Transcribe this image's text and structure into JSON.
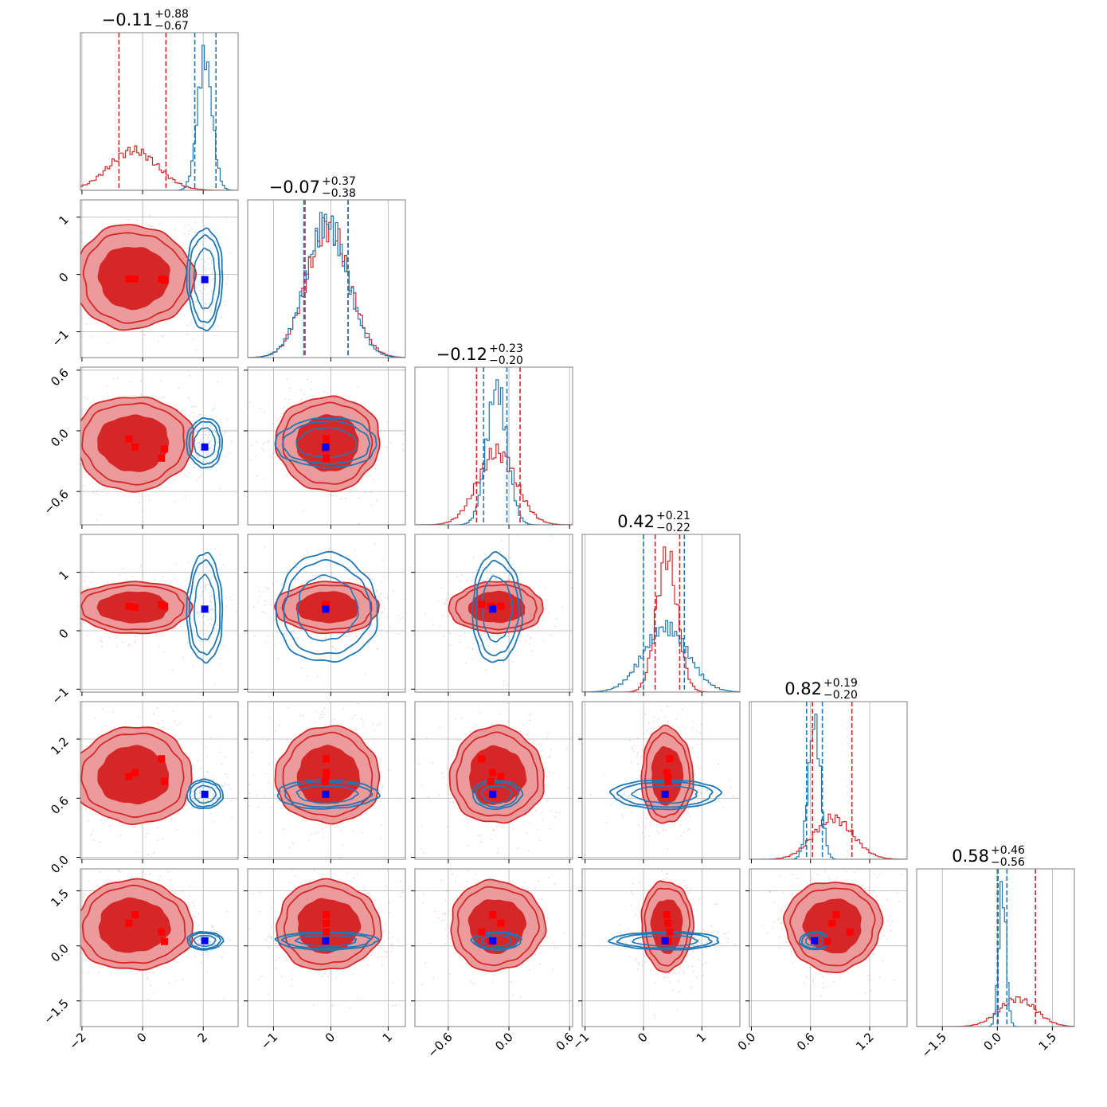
{
  "chart_data": {
    "type": "corner",
    "n_params": 6,
    "colors": {
      "red": "#d62728",
      "blue": "#1f77b4",
      "marker_red": "#ff0000",
      "marker_blue": "#0000ff",
      "grid": "#b0b0b0"
    },
    "titles": [
      {
        "main": "−0.11",
        "plus": "+0.88",
        "minus": "−0.67"
      },
      {
        "main": "−0.07",
        "plus": "+0.37",
        "minus": "−0.38"
      },
      {
        "main": "−0.12",
        "plus": "+0.23",
        "minus": "−0.20"
      },
      {
        "main": "0.42",
        "plus": "+0.21",
        "minus": "−0.22"
      },
      {
        "main": "0.82",
        "plus": "+0.19",
        "minus": "−0.20"
      },
      {
        "main": "0.58",
        "plus": "+0.46",
        "minus": "−0.56"
      }
    ],
    "axes": [
      {
        "lim": [
          -2.05,
          3.15
        ],
        "ticks": [
          -2,
          0,
          2
        ],
        "tick_labels": [
          "−2",
          "0",
          "2"
        ]
      },
      {
        "lim": [
          -1.45,
          1.3
        ],
        "ticks": [
          -1,
          0,
          1
        ],
        "tick_labels": [
          "−1",
          "0",
          "1"
        ]
      },
      {
        "lim": [
          -0.93,
          0.63
        ],
        "ticks": [
          -0.6,
          0.0,
          0.6
        ],
        "tick_labels": [
          "−0.6",
          "0.0",
          "0.6"
        ]
      },
      {
        "lim": [
          -1.05,
          1.65
        ],
        "ticks": [
          -1,
          0,
          1
        ],
        "tick_labels": [
          "−1",
          "0",
          "1"
        ]
      },
      {
        "lim": [
          -0.02,
          1.58
        ],
        "ticks": [
          0.0,
          0.6,
          1.2
        ],
        "tick_labels": [
          "0.0",
          "0.6",
          "1.2"
        ]
      },
      {
        "lim": [
          -2.2,
          2.1
        ],
        "ticks": [
          -1.5,
          0.0,
          1.5
        ],
        "tick_labels": [
          "−1.5",
          "0.0",
          "1.5"
        ]
      }
    ],
    "red_posterior": {
      "mean": [
        -0.3,
        -0.05,
        -0.12,
        0.4,
        0.83,
        0.55
      ],
      "sd": [
        0.8,
        0.37,
        0.19,
        0.18,
        0.2,
        0.5
      ]
    },
    "blue_posterior": {
      "mean": [
        2.05,
        -0.07,
        -0.12,
        0.38,
        0.64,
        0.14
      ],
      "sd": [
        0.24,
        0.36,
        0.1,
        0.38,
        0.06,
        0.1
      ]
    },
    "quantile_lines": {
      "red": [
        [
          -0.78,
          0.77
        ],
        [
          -0.45,
          0.3
        ],
        [
          -0.32,
          0.11
        ],
        [
          0.2,
          0.62
        ],
        [
          0.62,
          1.02
        ],
        [
          0.02,
          1.04
        ]
      ],
      "blue": [
        [
          1.72,
          2.42
        ],
        [
          -0.47,
          0.3
        ],
        [
          -0.25,
          -0.02
        ],
        [
          0.0,
          0.7
        ],
        [
          0.56,
          0.72
        ],
        [
          0.0,
          0.26
        ]
      ]
    },
    "red_markers": [
      [
        -0.45,
        -0.08,
        -0.08,
        0.42,
        0.82,
        0.62
      ],
      [
        -0.25,
        -0.08,
        -0.16,
        0.4,
        0.86,
        0.85
      ],
      [
        0.62,
        -0.08,
        -0.27,
        0.45,
        1.0,
        0.38
      ],
      [
        0.72,
        -0.1,
        -0.18,
        0.42,
        0.77,
        0.12
      ]
    ],
    "blue_marker": [
      2.05,
      -0.09,
      -0.16,
      0.37,
      0.64,
      0.14
    ]
  }
}
